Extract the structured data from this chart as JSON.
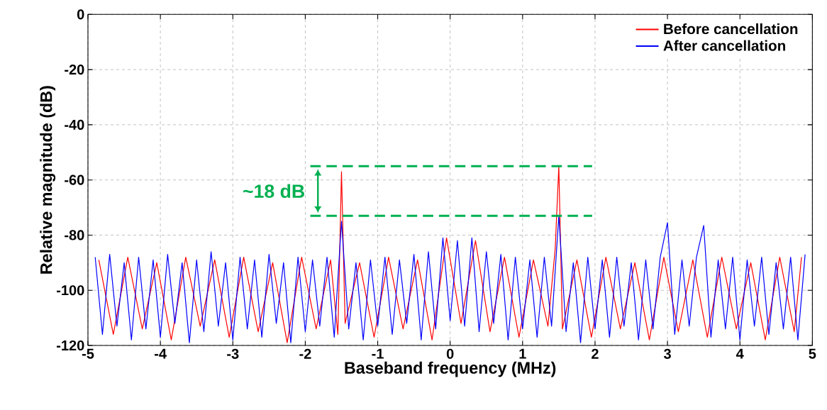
{
  "chart_data": {
    "type": "line",
    "xlabel": "Baseband frequency (MHz)",
    "ylabel": "Relative magnitude (dB)",
    "xlim": [
      -5,
      5
    ],
    "ylim": [
      -120,
      0
    ],
    "xticks": [
      -5,
      -4,
      -3,
      -2,
      -1,
      0,
      1,
      2,
      3,
      4,
      5
    ],
    "yticks": [
      -120,
      -100,
      -80,
      -60,
      -40,
      -20,
      0
    ],
    "grid": true,
    "legend": "top right",
    "series": [
      {
        "name": "Before cancellation",
        "color": "#ff0000",
        "x": [
          -4.85,
          -4.65,
          -4.45,
          -4.25,
          -4.05,
          -3.85,
          -3.65,
          -3.45,
          -3.25,
          -3.05,
          -2.85,
          -2.65,
          -2.45,
          -2.25,
          -2.05,
          -1.85,
          -1.65,
          -1.55,
          -1.5,
          -1.45,
          -1.25,
          -1.05,
          -0.85,
          -0.65,
          -0.45,
          -0.25,
          -0.05,
          0.15,
          0.35,
          0.55,
          0.75,
          0.95,
          1.15,
          1.35,
          1.45,
          1.5,
          1.55,
          1.75,
          1.95,
          2.15,
          2.35,
          2.55,
          2.75,
          2.95,
          3.15,
          3.35,
          3.55,
          3.75,
          3.95,
          4.15,
          4.35,
          4.55,
          4.75,
          4.85
        ],
        "values": [
          -89,
          -116,
          -88,
          -114,
          -90,
          -118,
          -88,
          -113,
          -89,
          -117,
          -88,
          -115,
          -90,
          -119,
          -88,
          -114,
          -89,
          -116,
          -57,
          -112,
          -90,
          -117,
          -88,
          -114,
          -89,
          -118,
          -81,
          -112,
          -82,
          -115,
          -88,
          -117,
          -89,
          -113,
          -85,
          -55,
          -114,
          -89,
          -117,
          -88,
          -114,
          -90,
          -118,
          -88,
          -115,
          -89,
          -117,
          -88,
          -114,
          -90,
          -118,
          -88,
          -115,
          -88
        ]
      },
      {
        "name": "After cancellation",
        "color": "#0000ff",
        "x": [
          -4.9,
          -4.8,
          -4.7,
          -4.6,
          -4.5,
          -4.4,
          -4.3,
          -4.2,
          -4.1,
          -4.0,
          -3.9,
          -3.8,
          -3.7,
          -3.6,
          -3.5,
          -3.4,
          -3.3,
          -3.2,
          -3.1,
          -3.0,
          -2.9,
          -2.8,
          -2.7,
          -2.6,
          -2.5,
          -2.4,
          -2.3,
          -2.2,
          -2.1,
          -2.0,
          -1.9,
          -1.8,
          -1.7,
          -1.6,
          -1.5,
          -1.4,
          -1.3,
          -1.2,
          -1.1,
          -1.0,
          -0.9,
          -0.8,
          -0.7,
          -0.6,
          -0.5,
          -0.4,
          -0.3,
          -0.2,
          -0.1,
          0.0,
          0.1,
          0.2,
          0.3,
          0.4,
          0.5,
          0.6,
          0.7,
          0.8,
          0.9,
          1.0,
          1.1,
          1.2,
          1.3,
          1.4,
          1.5,
          1.6,
          1.7,
          1.8,
          1.9,
          2.0,
          2.1,
          2.2,
          2.3,
          2.4,
          2.5,
          2.6,
          2.7,
          2.8,
          2.9,
          3.0,
          3.1,
          3.2,
          3.3,
          3.4,
          3.5,
          3.6,
          3.7,
          3.8,
          3.9,
          4.0,
          4.1,
          4.2,
          4.3,
          4.4,
          4.5,
          4.6,
          4.7,
          4.8,
          4.9
        ],
        "values": [
          -88,
          -116,
          -87,
          -113,
          -90,
          -118,
          -88,
          -114,
          -89,
          -117,
          -87,
          -112,
          -90,
          -119,
          -89,
          -115,
          -86,
          -113,
          -90,
          -118,
          -88,
          -114,
          -89,
          -117,
          -87,
          -112,
          -90,
          -119,
          -88,
          -115,
          -89,
          -113,
          -88,
          -117,
          -75,
          -114,
          -90,
          -118,
          -89,
          -113,
          -88,
          -116,
          -89,
          -112,
          -87,
          -118,
          -86,
          -114,
          -81,
          -111,
          -82,
          -113,
          -81,
          -115,
          -86,
          -112,
          -87,
          -118,
          -88,
          -114,
          -89,
          -117,
          -88,
          -113,
          -73,
          -115,
          -90,
          -119,
          -88,
          -114,
          -89,
          -117,
          -88,
          -113,
          -90,
          -118,
          -89,
          -114,
          -88,
          -75.5,
          -116,
          -89,
          -113,
          -88,
          -76.5,
          -117,
          -89,
          -114,
          -88,
          -118,
          -89,
          -113,
          -88,
          -116,
          -90,
          -114,
          -88,
          -118,
          -87
        ]
      },
      {
        "color": "#00b050",
        "line_style": "dashed",
        "x": [
          -1.93,
          1.96
        ],
        "values": [
          -55,
          -55
        ]
      },
      {
        "color": "#00b050",
        "line_style": "dashed",
        "x": [
          -1.93,
          1.96
        ],
        "values": [
          -73,
          -73
        ]
      }
    ],
    "annotations": [
      "~18 dB"
    ]
  }
}
